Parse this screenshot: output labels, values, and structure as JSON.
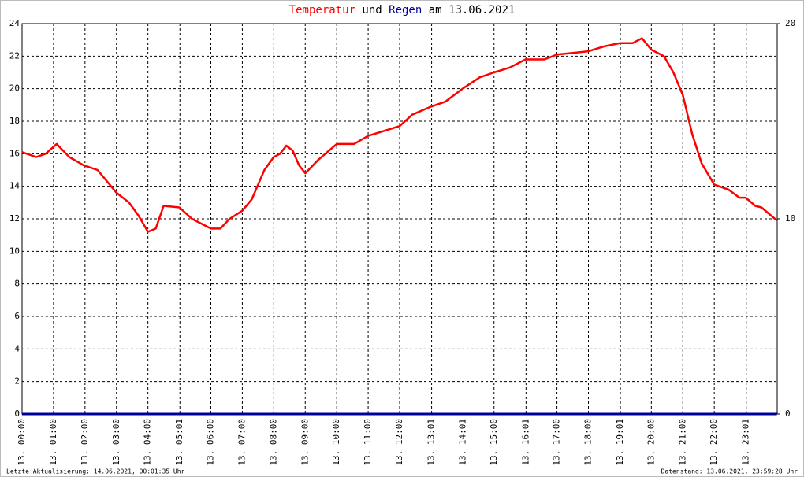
{
  "chart_data": {
    "type": "line",
    "title_connector": "und",
    "title_date": "am 13.06.2021",
    "footer_left": "Letzte Aktualisierung: 14.06.2021, 00:01:35 Uhr",
    "footer_right": "Datenstand: 13.06.2021, 23:59:28 Uhr",
    "grid": true,
    "xlim": [
      0,
      24
    ],
    "xticks": [
      {
        "value": 0,
        "label": "13. 00:00"
      },
      {
        "value": 1,
        "label": "13. 01:00"
      },
      {
        "value": 2,
        "label": "13. 02:00"
      },
      {
        "value": 3,
        "label": "13. 03:00"
      },
      {
        "value": 4,
        "label": "13. 04:00"
      },
      {
        "value": 5.0167,
        "label": "13. 05:01"
      },
      {
        "value": 6,
        "label": "13. 06:00"
      },
      {
        "value": 7,
        "label": "13. 07:00"
      },
      {
        "value": 8,
        "label": "13. 08:00"
      },
      {
        "value": 9,
        "label": "13. 09:00"
      },
      {
        "value": 10,
        "label": "13. 10:00"
      },
      {
        "value": 11,
        "label": "13. 11:00"
      },
      {
        "value": 12,
        "label": "13. 12:00"
      },
      {
        "value": 13.0167,
        "label": "13. 13:01"
      },
      {
        "value": 14.0167,
        "label": "13. 14:01"
      },
      {
        "value": 15,
        "label": "13. 15:00"
      },
      {
        "value": 16.0167,
        "label": "13. 16:01"
      },
      {
        "value": 17,
        "label": "13. 17:00"
      },
      {
        "value": 18,
        "label": "13. 18:00"
      },
      {
        "value": 19.0167,
        "label": "13. 19:01"
      },
      {
        "value": 20,
        "label": "13. 20:00"
      },
      {
        "value": 21,
        "label": "13. 21:00"
      },
      {
        "value": 22,
        "label": "13. 22:00"
      },
      {
        "value": 23.0167,
        "label": "13. 23:01"
      }
    ],
    "ylim": [
      0,
      24
    ],
    "yticks": [
      0,
      2,
      4,
      6,
      8,
      10,
      12,
      14,
      16,
      18,
      20,
      22,
      24
    ],
    "y2lim": [
      0,
      20
    ],
    "y2ticks": [
      0,
      10,
      20
    ],
    "series": [
      {
        "name": "Temperatur",
        "color": "#ff0000",
        "x": [
          0,
          0.45,
          0.75,
          1.1,
          1.5,
          1.95,
          2.4,
          3,
          3.4,
          3.7,
          4,
          4.25,
          4.5,
          5,
          5.4,
          6,
          6.3,
          6.6,
          7,
          7.3,
          7.7,
          8,
          8.2,
          8.4,
          8.6,
          8.8,
          9,
          9.4,
          10,
          10.55,
          11,
          11.5,
          12,
          12.4,
          13,
          13.45,
          14,
          14.55,
          15,
          15.5,
          16,
          16.6,
          17,
          17.5,
          18,
          18.5,
          19,
          19.4,
          19.7,
          20,
          20.4,
          20.7,
          21,
          21.3,
          21.6,
          22,
          22.45,
          22.8,
          23,
          23.3,
          23.5,
          23.99
        ],
        "values": [
          16.1,
          15.8,
          16.0,
          16.6,
          15.8,
          15.3,
          15.0,
          13.6,
          13.0,
          12.2,
          11.2,
          11.4,
          12.8,
          12.7,
          12.0,
          11.4,
          11.4,
          12.0,
          12.5,
          13.2,
          15.0,
          15.8,
          16.0,
          16.5,
          16.2,
          15.3,
          14.8,
          15.6,
          16.6,
          16.6,
          17.1,
          17.4,
          17.7,
          18.4,
          18.9,
          19.2,
          20.0,
          20.7,
          21.0,
          21.3,
          21.8,
          21.8,
          22.1,
          22.2,
          22.3,
          22.6,
          22.8,
          22.8,
          23.1,
          22.4,
          22.0,
          21.0,
          19.6,
          17.2,
          15.4,
          14.1,
          13.8,
          13.3,
          13.3,
          12.8,
          12.7,
          11.9
        ]
      },
      {
        "name": "Regen",
        "color": "#000099",
        "axis": "y2",
        "x": [
          0,
          23.99
        ],
        "values": [
          0,
          0
        ]
      }
    ]
  }
}
